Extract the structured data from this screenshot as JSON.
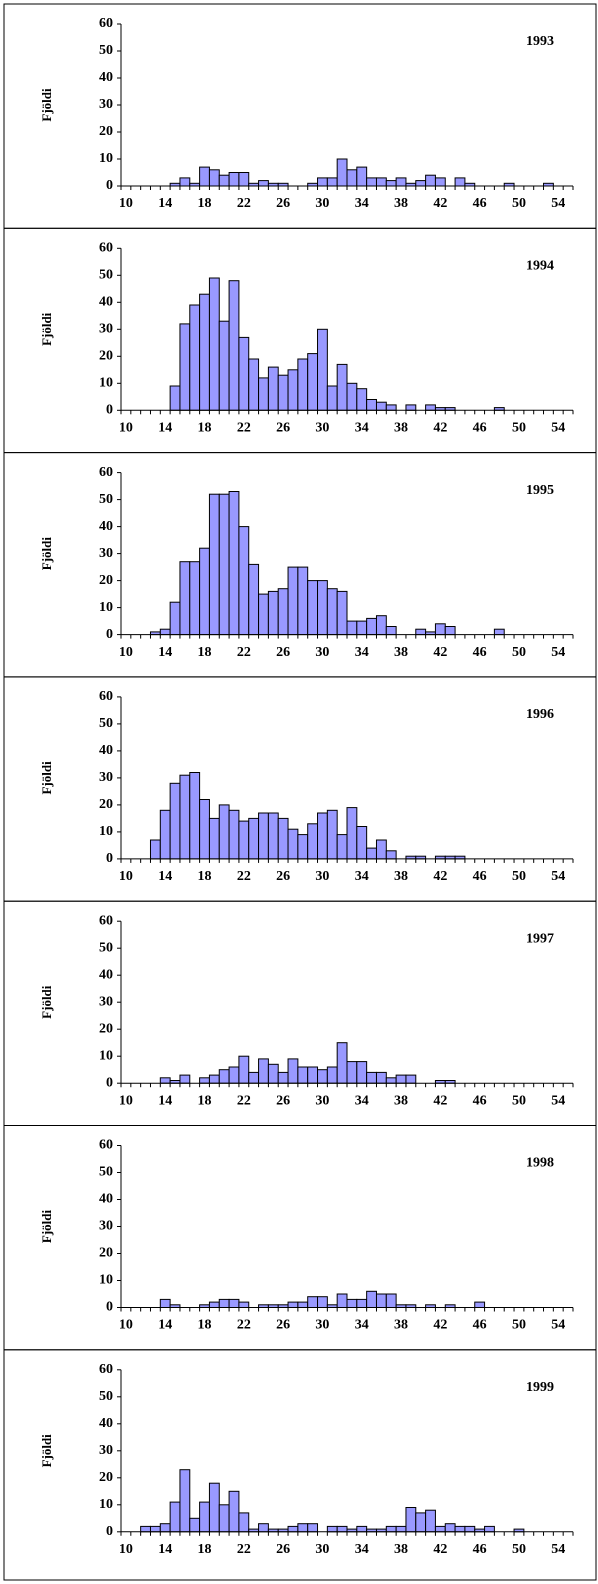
{
  "chart_data": [
    {
      "type": "bar",
      "title": "1993",
      "y_label": "Fjöldi",
      "color": "#9999ff",
      "ylim": [
        0,
        60
      ],
      "yticks": [
        0,
        10,
        20,
        30,
        40,
        50,
        60
      ],
      "categories": [
        "10",
        null,
        null,
        null,
        "14",
        null,
        null,
        null,
        "18",
        null,
        null,
        null,
        "22",
        null,
        null,
        null,
        "26",
        null,
        null,
        null,
        "30",
        null,
        null,
        null,
        "34",
        null,
        null,
        null,
        "38",
        null,
        null,
        null,
        "42",
        null,
        null,
        null,
        "46",
        null,
        null,
        null,
        "50",
        null,
        null,
        null,
        "54",
        null
      ],
      "values": [
        0,
        0,
        0,
        0,
        0,
        1,
        3,
        1,
        7,
        6,
        4,
        5,
        5,
        1,
        2,
        1,
        1,
        0,
        0,
        1,
        3,
        3,
        10,
        6,
        7,
        3,
        3,
        2,
        3,
        1,
        2,
        4,
        3,
        0,
        3,
        1,
        0,
        0,
        0,
        1,
        0,
        0,
        0,
        1,
        0,
        0
      ]
    },
    {
      "type": "bar",
      "title": "1994",
      "y_label": "Fjöldi",
      "color": "#9999ff",
      "ylim": [
        0,
        60
      ],
      "yticks": [
        0,
        10,
        20,
        30,
        40,
        50,
        60
      ],
      "categories": [
        "10",
        null,
        null,
        null,
        "14",
        null,
        null,
        null,
        "18",
        null,
        null,
        null,
        "22",
        null,
        null,
        null,
        "26",
        null,
        null,
        null,
        "30",
        null,
        null,
        null,
        "34",
        null,
        null,
        null,
        "38",
        null,
        null,
        null,
        "42",
        null,
        null,
        null,
        "46",
        null,
        null,
        null,
        "50",
        null,
        null,
        null,
        "54",
        null
      ],
      "values": [
        0,
        0,
        0,
        0,
        0,
        9,
        32,
        39,
        43,
        49,
        33,
        48,
        27,
        19,
        12,
        16,
        13,
        15,
        19,
        21,
        30,
        9,
        17,
        10,
        8,
        4,
        3,
        2,
        0,
        2,
        0,
        2,
        1,
        1,
        0,
        0,
        0,
        0,
        1,
        0,
        0,
        0,
        0,
        0,
        0,
        0
      ]
    },
    {
      "type": "bar",
      "title": "1995",
      "y_label": "Fjöldi",
      "color": "#9999ff",
      "ylim": [
        0,
        60
      ],
      "yticks": [
        0,
        10,
        20,
        30,
        40,
        50,
        60
      ],
      "categories": [
        "10",
        null,
        null,
        null,
        "14",
        null,
        null,
        null,
        "18",
        null,
        null,
        null,
        "22",
        null,
        null,
        null,
        "26",
        null,
        null,
        null,
        "30",
        null,
        null,
        null,
        "34",
        null,
        null,
        null,
        "38",
        null,
        null,
        null,
        "42",
        null,
        null,
        null,
        "46",
        null,
        null,
        null,
        "50",
        null,
        null,
        null,
        "54",
        null
      ],
      "values": [
        0,
        0,
        0,
        1,
        2,
        12,
        27,
        27,
        32,
        52,
        52,
        53,
        40,
        26,
        15,
        16,
        17,
        25,
        25,
        20,
        20,
        17,
        16,
        5,
        5,
        6,
        7,
        3,
        0,
        0,
        2,
        1,
        4,
        3,
        0,
        0,
        0,
        0,
        2,
        0,
        0,
        0,
        0,
        0,
        0,
        0
      ]
    },
    {
      "type": "bar",
      "title": "1996",
      "y_label": "Fjöldi",
      "color": "#9999ff",
      "ylim": [
        0,
        60
      ],
      "yticks": [
        0,
        10,
        20,
        30,
        40,
        50,
        60
      ],
      "categories": [
        "10",
        null,
        null,
        null,
        "14",
        null,
        null,
        null,
        "18",
        null,
        null,
        null,
        "22",
        null,
        null,
        null,
        "26",
        null,
        null,
        null,
        "30",
        null,
        null,
        null,
        "34",
        null,
        null,
        null,
        "38",
        null,
        null,
        null,
        "42",
        null,
        null,
        null,
        "46",
        null,
        null,
        null,
        "50",
        null,
        null,
        null,
        "54",
        null
      ],
      "values": [
        0,
        0,
        0,
        7,
        18,
        28,
        31,
        32,
        22,
        15,
        20,
        18,
        14,
        15,
        17,
        17,
        15,
        11,
        9,
        13,
        17,
        18,
        9,
        19,
        12,
        4,
        7,
        3,
        0,
        1,
        1,
        0,
        1,
        1,
        1,
        0,
        0,
        0,
        0,
        0,
        0,
        0,
        0,
        0,
        0,
        0
      ]
    },
    {
      "type": "bar",
      "title": "1997",
      "y_label": "Fjöldi",
      "color": "#9999ff",
      "ylim": [
        0,
        60
      ],
      "yticks": [
        0,
        10,
        20,
        30,
        40,
        50,
        60
      ],
      "categories": [
        "10",
        null,
        null,
        null,
        "14",
        null,
        null,
        null,
        "18",
        null,
        null,
        null,
        "22",
        null,
        null,
        null,
        "26",
        null,
        null,
        null,
        "30",
        null,
        null,
        null,
        "34",
        null,
        null,
        null,
        "38",
        null,
        null,
        null,
        "42",
        null,
        null,
        null,
        "46",
        null,
        null,
        null,
        "50",
        null,
        null,
        null,
        "54",
        null
      ],
      "values": [
        0,
        0,
        0,
        0,
        2,
        1,
        3,
        0,
        2,
        3,
        5,
        6,
        10,
        4,
        9,
        7,
        4,
        9,
        6,
        6,
        5,
        6,
        15,
        8,
        8,
        4,
        4,
        2,
        3,
        3,
        0,
        0,
        1,
        1,
        0,
        0,
        0,
        0,
        0,
        0,
        0,
        0,
        0,
        0,
        0,
        0
      ]
    },
    {
      "type": "bar",
      "title": "1998",
      "y_label": "Fjöldi",
      "color": "#9999ff",
      "ylim": [
        0,
        60
      ],
      "yticks": [
        0,
        10,
        20,
        30,
        40,
        50,
        60
      ],
      "categories": [
        "10",
        null,
        null,
        null,
        "14",
        null,
        null,
        null,
        "18",
        null,
        null,
        null,
        "22",
        null,
        null,
        null,
        "26",
        null,
        null,
        null,
        "30",
        null,
        null,
        null,
        "34",
        null,
        null,
        null,
        "38",
        null,
        null,
        null,
        "42",
        null,
        null,
        null,
        "46",
        null,
        null,
        null,
        "50",
        null,
        null,
        null,
        "54",
        null
      ],
      "values": [
        0,
        0,
        0,
        0,
        3,
        1,
        0,
        0,
        1,
        2,
        3,
        3,
        2,
        0,
        1,
        1,
        1,
        2,
        2,
        4,
        4,
        1,
        5,
        3,
        3,
        6,
        5,
        5,
        1,
        1,
        0,
        1,
        0,
        1,
        0,
        0,
        2,
        0,
        0,
        0,
        0,
        0,
        0,
        0,
        0,
        0
      ]
    },
    {
      "type": "bar",
      "title": "1999",
      "y_label": "Fjöldi",
      "color": "#9999ff",
      "ylim": [
        0,
        60
      ],
      "yticks": [
        0,
        10,
        20,
        30,
        40,
        50,
        60
      ],
      "categories": [
        "10",
        null,
        null,
        null,
        "14",
        null,
        null,
        null,
        "18",
        null,
        null,
        null,
        "22",
        null,
        null,
        null,
        "26",
        null,
        null,
        null,
        "30",
        null,
        null,
        null,
        "34",
        null,
        null,
        null,
        "38",
        null,
        null,
        null,
        "42",
        null,
        null,
        null,
        "46",
        null,
        null,
        null,
        "50",
        null,
        null,
        null,
        "54",
        null
      ],
      "values": [
        0,
        0,
        2,
        2,
        3,
        11,
        23,
        5,
        11,
        18,
        10,
        15,
        7,
        1,
        3,
        1,
        1,
        2,
        3,
        3,
        0,
        2,
        2,
        1,
        2,
        1,
        1,
        2,
        2,
        9,
        7,
        8,
        2,
        3,
        2,
        2,
        1,
        2,
        0,
        0,
        1,
        0,
        0,
        0,
        0,
        0
      ]
    }
  ]
}
